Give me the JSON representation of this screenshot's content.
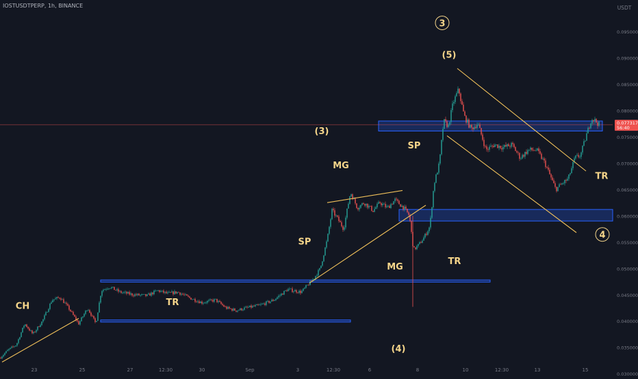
{
  "header": {
    "symbol_line": "IOSTUSDTPERP, 1h, BINANCE",
    "currency": "USDT"
  },
  "colors": {
    "background": "#131722",
    "up": "#26a69a",
    "down": "#ef5350",
    "trendline": "#f0c05a",
    "zone_fill": "#1e3a8a",
    "zone_stroke": "#2962ff",
    "annotation": "#f5d58a",
    "price_tag": "#ef5350",
    "axis_text": "#787b86"
  },
  "price_tag": {
    "price": "0.077317",
    "countdown": "56:40",
    "value": 0.077317
  },
  "chart_data": {
    "type": "candlestick",
    "title": "",
    "xlabel": "",
    "ylabel": "USDT",
    "ylim": [
      0.0295,
      0.101
    ],
    "x_ticks": [
      "23",
      "25",
      "27",
      "12:30",
      "30",
      "Sep",
      "3",
      "12:30",
      "6",
      "8",
      "10",
      "12:30",
      "13",
      "15"
    ],
    "y_ticks": [
      "0.030000",
      "0.035000",
      "0.040000",
      "0.045000",
      "0.050000",
      "0.055000",
      "0.060000",
      "0.065000",
      "0.070000",
      "0.075000",
      "0.080000",
      "0.085000",
      "0.090000",
      "0.095000"
    ],
    "price_path": [
      [
        0,
        0.033
      ],
      [
        12,
        0.0345
      ],
      [
        24,
        0.0355
      ],
      [
        36,
        0.0395
      ],
      [
        48,
        0.0375
      ],
      [
        62,
        0.04
      ],
      [
        76,
        0.044
      ],
      [
        88,
        0.0445
      ],
      [
        100,
        0.0425
      ],
      [
        115,
        0.0395
      ],
      [
        128,
        0.0425
      ],
      [
        140,
        0.0395
      ],
      [
        148,
        0.0458
      ],
      [
        160,
        0.0465
      ],
      [
        175,
        0.0455
      ],
      [
        195,
        0.045
      ],
      [
        215,
        0.0448
      ],
      [
        230,
        0.0458
      ],
      [
        245,
        0.0452
      ],
      [
        260,
        0.0455
      ],
      [
        275,
        0.0445
      ],
      [
        295,
        0.0435
      ],
      [
        315,
        0.044
      ],
      [
        330,
        0.0425
      ],
      [
        345,
        0.042
      ],
      [
        360,
        0.0425
      ],
      [
        380,
        0.043
      ],
      [
        400,
        0.044
      ],
      [
        420,
        0.046
      ],
      [
        440,
        0.0455
      ],
      [
        458,
        0.048
      ],
      [
        468,
        0.05
      ],
      [
        478,
        0.0555
      ],
      [
        485,
        0.061
      ],
      [
        493,
        0.0595
      ],
      [
        502,
        0.0575
      ],
      [
        512,
        0.0645
      ],
      [
        522,
        0.0615
      ],
      [
        532,
        0.0625
      ],
      [
        545,
        0.061
      ],
      [
        555,
        0.0625
      ],
      [
        566,
        0.0615
      ],
      [
        577,
        0.063
      ],
      [
        590,
        0.0615
      ],
      [
        598,
        0.06
      ],
      [
        604,
        0.0535
      ],
      [
        612,
        0.0545
      ],
      [
        620,
        0.056
      ],
      [
        628,
        0.058
      ],
      [
        634,
        0.066
      ],
      [
        642,
        0.07
      ],
      [
        648,
        0.078
      ],
      [
        655,
        0.077
      ],
      [
        662,
        0.0815
      ],
      [
        670,
        0.084
      ],
      [
        678,
        0.079
      ],
      [
        688,
        0.0765
      ],
      [
        698,
        0.0775
      ],
      [
        710,
        0.0725
      ],
      [
        722,
        0.0735
      ],
      [
        735,
        0.073
      ],
      [
        748,
        0.0735
      ],
      [
        760,
        0.071
      ],
      [
        772,
        0.0725
      ],
      [
        784,
        0.0725
      ],
      [
        796,
        0.07
      ],
      [
        804,
        0.0675
      ],
      [
        812,
        0.065
      ],
      [
        820,
        0.066
      ],
      [
        830,
        0.067
      ],
      [
        840,
        0.071
      ],
      [
        848,
        0.0715
      ],
      [
        856,
        0.075
      ],
      [
        864,
        0.0785
      ],
      [
        870,
        0.078
      ],
      [
        876,
        0.0772
      ]
    ],
    "zones": [
      {
        "name": "resistance-zone-top",
        "x_from": 553,
        "x_to": 880,
        "y_low": 0.0761,
        "y_high": 0.078
      },
      {
        "name": "support-zone-mid",
        "x_from": 583,
        "x_to": 895,
        "y_low": 0.059,
        "y_high": 0.0612
      },
      {
        "name": "range-top-line",
        "x_from": 147,
        "x_to": 716,
        "y_low": 0.0474,
        "y_high": 0.0478
      },
      {
        "name": "range-bottom-line",
        "x_from": 147,
        "x_to": 512,
        "y_low": 0.0398,
        "y_high": 0.0402
      }
    ],
    "trendlines": [
      {
        "name": "ch-trendline",
        "points": [
          [
            3,
            0.0322
          ],
          [
            115,
            0.0405
          ]
        ]
      },
      {
        "name": "mg-upper-trendline",
        "points": [
          [
            478,
            0.0625
          ],
          [
            588,
            0.0648
          ]
        ]
      },
      {
        "name": "mg-lower-trendline",
        "points": [
          [
            452,
            0.0472
          ],
          [
            622,
            0.062
          ]
        ]
      },
      {
        "name": "channel-upper-trendline",
        "points": [
          [
            668,
            0.088
          ],
          [
            856,
            0.0685
          ]
        ]
      },
      {
        "name": "channel-lower-trendline",
        "points": [
          [
            653,
            0.0752
          ],
          [
            842,
            0.0568
          ]
        ]
      }
    ],
    "annotations": [
      {
        "name": "label-ch",
        "text": "CH",
        "x": 33,
        "y": 0.0423,
        "circled": false
      },
      {
        "name": "label-tr-left",
        "text": "TR",
        "x": 252,
        "y": 0.043,
        "circled": false
      },
      {
        "name": "label-sp-left",
        "text": "SP",
        "x": 445,
        "y": 0.0545,
        "circled": false
      },
      {
        "name": "label-mg-top",
        "text": "MG",
        "x": 498,
        "y": 0.069,
        "circled": false
      },
      {
        "name": "label-mg-bottom",
        "text": "MG",
        "x": 577,
        "y": 0.0498,
        "circled": false
      },
      {
        "name": "label-tr-mid",
        "text": "TR",
        "x": 664,
        "y": 0.0508,
        "circled": false
      },
      {
        "name": "label-sp-right",
        "text": "SP",
        "x": 605,
        "y": 0.0728,
        "circled": false
      },
      {
        "name": "label-wave-3-paren",
        "text": "(3)",
        "x": 470,
        "y": 0.0755,
        "circled": false
      },
      {
        "name": "label-wave-4-paren",
        "text": "(4)",
        "x": 582,
        "y": 0.0342,
        "circled": false
      },
      {
        "name": "label-wave-5-paren",
        "text": "(5)",
        "x": 656,
        "y": 0.09,
        "circled": false
      },
      {
        "name": "label-wave-3-circled",
        "text": "3",
        "x": 646,
        "y": 0.096,
        "circled": true
      },
      {
        "name": "label-wave-4-circled",
        "text": "4",
        "x": 880,
        "y": 0.0558,
        "circled": true
      },
      {
        "name": "label-tr-right",
        "text": "TR",
        "x": 879,
        "y": 0.067,
        "circled": false
      }
    ]
  }
}
